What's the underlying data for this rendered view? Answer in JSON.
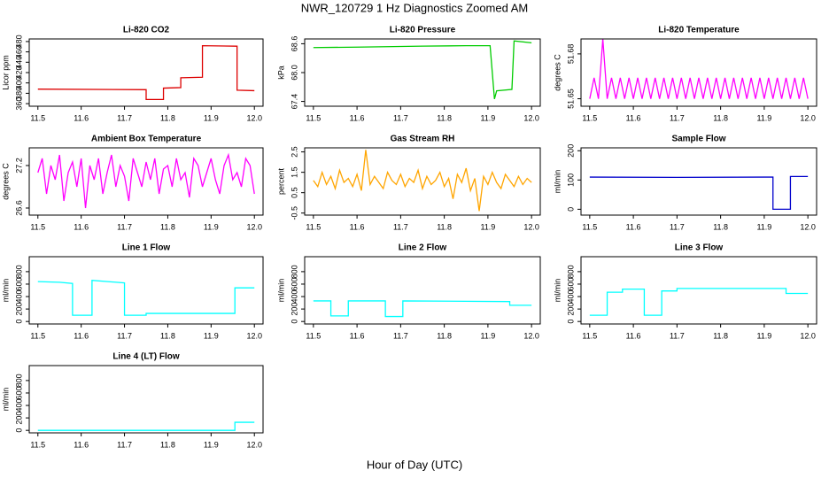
{
  "title": "NWR_120729  1 Hz Diagnostics Zoomed AM",
  "xlabel": "Hour of Day (UTC)",
  "chart_data": [
    {
      "type": "line",
      "title": "Li-820 CO2",
      "ylabel": "Licor ppm",
      "color": "#dd0000",
      "x": [
        11.5,
        11.75,
        11.75,
        11.79,
        11.79,
        11.83,
        11.83,
        11.88,
        11.88,
        11.96,
        11.96,
        12.0
      ],
      "values": [
        388,
        387,
        368,
        368,
        390,
        391,
        410,
        411,
        472,
        471,
        386,
        385
      ],
      "xlim": [
        11.48,
        12.02
      ],
      "xticks": [
        11.5,
        11.6,
        11.7,
        11.8,
        11.9,
        {
          "value": 12,
          "label": "12.0"
        }
      ],
      "ylim": [
        355,
        485
      ],
      "yticks": [
        360,
        380,
        400,
        420,
        440,
        460,
        480
      ]
    },
    {
      "type": "line",
      "title": "Li-820 Pressure",
      "ylabel": "kPa",
      "color": "#00cc00",
      "x": [
        11.5,
        11.6,
        11.75,
        11.85,
        11.905,
        11.915,
        11.92,
        11.955,
        11.96,
        12.0
      ],
      "values": [
        68.52,
        68.53,
        68.55,
        68.56,
        68.56,
        67.45,
        67.62,
        67.65,
        68.66,
        68.62
      ],
      "xlim": [
        11.48,
        12.02
      ],
      "xticks": [
        11.5,
        11.6,
        11.7,
        11.8,
        11.9,
        {
          "value": 12,
          "label": "12.0"
        }
      ],
      "ylim": [
        67.3,
        68.7
      ],
      "yticks": [
        67.4,
        {
          "value": 68,
          "label": "68.0"
        },
        68.6
      ]
    },
    {
      "type": "line",
      "title": "Li-820 Temperature",
      "ylabel": "degrees C",
      "color": "#ff00ff",
      "x": [
        11.5,
        11.51,
        11.52,
        11.53,
        11.54,
        11.55,
        11.56,
        11.57,
        11.58,
        11.59,
        11.6,
        11.61,
        11.62,
        11.63,
        11.64,
        11.65,
        11.66,
        11.67,
        11.68,
        11.69,
        11.7,
        11.71,
        11.72,
        11.73,
        11.74,
        11.75,
        11.76,
        11.77,
        11.78,
        11.79,
        11.8,
        11.81,
        11.82,
        11.83,
        11.84,
        11.85,
        11.86,
        11.87,
        11.88,
        11.89,
        11.9,
        11.91,
        11.92,
        11.93,
        11.94,
        11.95,
        11.96,
        11.97,
        11.98,
        11.99,
        12.0
      ],
      "values": [
        51.65,
        51.664,
        51.65,
        51.69,
        51.65,
        51.664,
        51.65,
        51.664,
        51.65,
        51.664,
        51.65,
        51.664,
        51.65,
        51.664,
        51.65,
        51.664,
        51.65,
        51.664,
        51.65,
        51.664,
        51.65,
        51.664,
        51.65,
        51.664,
        51.65,
        51.664,
        51.65,
        51.664,
        51.65,
        51.664,
        51.65,
        51.664,
        51.65,
        51.664,
        51.65,
        51.664,
        51.65,
        51.664,
        51.65,
        51.664,
        51.65,
        51.664,
        51.65,
        51.664,
        51.65,
        51.664,
        51.65,
        51.664,
        51.65,
        51.664,
        51.65
      ],
      "xlim": [
        11.48,
        12.02
      ],
      "xticks": [
        11.5,
        11.6,
        11.7,
        11.8,
        11.9,
        {
          "value": 12,
          "label": "12.0"
        }
      ],
      "ylim": [
        51.645,
        51.69
      ],
      "yticks": [
        51.65,
        51.68
      ]
    },
    {
      "type": "line",
      "title": "Ambient Box Temperature",
      "ylabel": "degrees C",
      "color": "#ff00ff",
      "x": [
        11.5,
        11.51,
        11.52,
        11.53,
        11.54,
        11.55,
        11.56,
        11.57,
        11.58,
        11.59,
        11.6,
        11.61,
        11.62,
        11.63,
        11.64,
        11.65,
        11.66,
        11.67,
        11.68,
        11.69,
        11.7,
        11.71,
        11.72,
        11.73,
        11.74,
        11.75,
        11.76,
        11.77,
        11.78,
        11.79,
        11.8,
        11.81,
        11.82,
        11.83,
        11.84,
        11.85,
        11.86,
        11.87,
        11.88,
        11.89,
        11.9,
        11.91,
        11.92,
        11.93,
        11.94,
        11.95,
        11.96,
        11.97,
        11.98,
        11.99,
        12.0
      ],
      "values": [
        27.1,
        27.3,
        26.8,
        27.2,
        27.0,
        27.35,
        26.7,
        27.1,
        27.25,
        26.9,
        27.3,
        26.6,
        27.2,
        27.0,
        27.3,
        26.8,
        27.1,
        27.35,
        26.9,
        27.2,
        27.05,
        26.7,
        27.3,
        27.1,
        26.9,
        27.25,
        27.0,
        27.3,
        26.8,
        27.15,
        27.2,
        26.9,
        27.3,
        27.0,
        27.1,
        26.75,
        27.3,
        27.2,
        26.9,
        27.1,
        27.3,
        27.0,
        26.8,
        27.2,
        27.35,
        27.0,
        27.1,
        26.9,
        27.3,
        27.2,
        26.8
      ],
      "xlim": [
        11.48,
        12.02
      ],
      "xticks": [
        11.5,
        11.6,
        11.7,
        11.8,
        11.9,
        {
          "value": 12,
          "label": "12.0"
        }
      ],
      "ylim": [
        26.5,
        27.45
      ],
      "yticks": [
        26.6,
        27.2
      ]
    },
    {
      "type": "line",
      "title": "Gas Stream RH",
      "ylabel": "percent",
      "color": "#ffa500",
      "x": [
        11.5,
        11.51,
        11.52,
        11.53,
        11.54,
        11.55,
        11.56,
        11.57,
        11.58,
        11.59,
        11.6,
        11.61,
        11.62,
        11.63,
        11.64,
        11.65,
        11.66,
        11.67,
        11.68,
        11.69,
        11.7,
        11.71,
        11.72,
        11.73,
        11.74,
        11.75,
        11.76,
        11.77,
        11.78,
        11.79,
        11.8,
        11.81,
        11.82,
        11.83,
        11.84,
        11.85,
        11.86,
        11.87,
        11.88,
        11.89,
        11.9,
        11.91,
        11.92,
        11.93,
        11.94,
        11.95,
        11.96,
        11.97,
        11.98,
        11.99,
        12.0
      ],
      "values": [
        1.1,
        0.8,
        1.5,
        0.9,
        1.3,
        0.7,
        1.6,
        1.0,
        1.2,
        0.8,
        1.4,
        0.6,
        2.6,
        0.9,
        1.3,
        1.0,
        0.7,
        1.5,
        1.1,
        0.9,
        1.4,
        0.8,
        1.2,
        1.0,
        1.6,
        0.7,
        1.3,
        0.9,
        1.1,
        1.5,
        0.8,
        1.2,
        0.2,
        1.4,
        1.0,
        1.7,
        0.6,
        1.2,
        -0.4,
        1.3,
        0.9,
        1.5,
        1.0,
        0.7,
        1.4,
        1.1,
        0.8,
        1.3,
        0.9,
        1.2,
        1.0
      ],
      "xlim": [
        11.48,
        12.02
      ],
      "xticks": [
        11.5,
        11.6,
        11.7,
        11.8,
        11.9,
        {
          "value": 12,
          "label": "12.0"
        }
      ],
      "ylim": [
        -0.6,
        2.7
      ],
      "yticks": [
        -0.5,
        0.5,
        1.5,
        2.5
      ]
    },
    {
      "type": "line",
      "title": "Sample Flow",
      "ylabel": "ml/min",
      "color": "#0000cc",
      "x": [
        11.5,
        11.7,
        11.9,
        11.92,
        11.92,
        11.96,
        11.96,
        12.0
      ],
      "values": [
        110,
        109,
        110,
        110,
        0,
        0,
        112,
        112
      ],
      "xlim": [
        11.48,
        12.02
      ],
      "xticks": [
        11.5,
        11.6,
        11.7,
        11.8,
        11.9,
        {
          "value": 12,
          "label": "12.0"
        }
      ],
      "ylim": [
        -20,
        210
      ],
      "yticks": [
        0,
        100,
        200
      ]
    },
    {
      "type": "line",
      "title": "Line 1 Flow",
      "ylabel": "ml/min",
      "color": "#00ffff",
      "x": [
        11.5,
        11.55,
        11.58,
        11.58,
        11.625,
        11.625,
        11.7,
        11.7,
        11.75,
        11.75,
        11.955,
        11.955,
        12.0
      ],
      "values": [
        640,
        630,
        610,
        100,
        100,
        660,
        620,
        100,
        100,
        130,
        130,
        540,
        540
      ],
      "xlim": [
        11.48,
        12.02
      ],
      "xticks": [
        11.5,
        11.6,
        11.7,
        11.8,
        11.9,
        {
          "value": 12,
          "label": "12.0"
        }
      ],
      "ylim": [
        -40,
        1040
      ],
      "yticks": [
        0,
        200,
        400,
        600,
        800
      ]
    },
    {
      "type": "line",
      "title": "Line 2 Flow",
      "ylabel": "ml/min",
      "color": "#00ffff",
      "x": [
        11.5,
        11.54,
        11.54,
        11.58,
        11.58,
        11.665,
        11.665,
        11.705,
        11.705,
        11.95,
        11.95,
        12.0
      ],
      "values": [
        330,
        330,
        90,
        90,
        330,
        330,
        80,
        80,
        330,
        320,
        260,
        260
      ],
      "xlim": [
        11.48,
        12.02
      ],
      "xticks": [
        11.5,
        11.6,
        11.7,
        11.8,
        11.9,
        {
          "value": 12,
          "label": "12.0"
        }
      ],
      "ylim": [
        -40,
        1040
      ],
      "yticks": [
        0,
        200,
        400,
        600,
        800
      ]
    },
    {
      "type": "line",
      "title": "Line 3 Flow",
      "ylabel": "ml/min",
      "color": "#00ffff",
      "x": [
        11.5,
        11.54,
        11.54,
        11.575,
        11.575,
        11.625,
        11.625,
        11.665,
        11.665,
        11.7,
        11.7,
        11.95,
        11.95,
        12.0
      ],
      "values": [
        100,
        100,
        470,
        470,
        520,
        520,
        100,
        100,
        490,
        490,
        530,
        530,
        450,
        450
      ],
      "xlim": [
        11.48,
        12.02
      ],
      "xticks": [
        11.5,
        11.6,
        11.7,
        11.8,
        11.9,
        {
          "value": 12,
          "label": "12.0"
        }
      ],
      "ylim": [
        -40,
        1040
      ],
      "yticks": [
        0,
        200,
        400,
        600,
        800
      ]
    },
    {
      "type": "line",
      "title": "Line 4 (LT) Flow",
      "ylabel": "ml/min",
      "color": "#00ffff",
      "x": [
        11.5,
        11.955,
        11.955,
        12.0
      ],
      "values": [
        0,
        0,
        130,
        130
      ],
      "xlim": [
        11.48,
        12.02
      ],
      "xticks": [
        11.5,
        11.6,
        11.7,
        11.8,
        11.9,
        {
          "value": 12,
          "label": "12.0"
        }
      ],
      "ylim": [
        -40,
        1040
      ],
      "yticks": [
        0,
        200,
        400,
        600,
        800
      ]
    }
  ]
}
